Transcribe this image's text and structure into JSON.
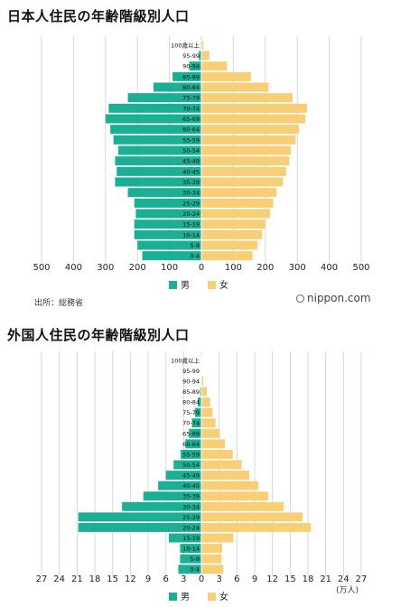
{
  "chart_data": [
    {
      "type": "bar",
      "title": "日本人住民の年齢階級別人口",
      "categories": [
        "100歳以上",
        "95-99",
        "90-94",
        "85-89",
        "80-84",
        "75-79",
        "70-74",
        "65-69",
        "60-64",
        "55-59",
        "50-54",
        "45-49",
        "40-45",
        "35-39",
        "30-34",
        "25-29",
        "20-24",
        "15-19",
        "10-14",
        "5-9",
        "0-4"
      ],
      "series": [
        {
          "name": "男",
          "values": [
            2,
            8,
            38,
            90,
            150,
            230,
            290,
            300,
            285,
            275,
            260,
            270,
            265,
            270,
            230,
            210,
            205,
            210,
            210,
            200,
            185
          ]
        },
        {
          "name": "女",
          "values": [
            6,
            25,
            80,
            155,
            210,
            285,
            330,
            325,
            305,
            295,
            280,
            275,
            265,
            255,
            235,
            225,
            215,
            200,
            190,
            175,
            160
          ]
        }
      ],
      "ticks": [
        "500",
        "400",
        "300",
        "200",
        "100",
        "0",
        "100",
        "200",
        "300",
        "400",
        "500"
      ],
      "source": "出所：総務省",
      "unit": "",
      "xlim": [
        -500,
        500
      ]
    },
    {
      "type": "bar",
      "title": "外国人住民の年齢階級別人口",
      "categories": [
        "100歳以上",
        "95-99",
        "90-94",
        "85-89",
        "80-84",
        "75-79",
        "70-74",
        "65-69",
        "60-64",
        "55-59",
        "50-54",
        "45-49",
        "40-45",
        "35-39",
        "30-34",
        "25-29",
        "20-24",
        "15-19",
        "10-14",
        "5-9",
        "0-4"
      ],
      "series": [
        {
          "name": "男",
          "values": [
            0,
            0,
            0,
            0.2,
            0.6,
            1.1,
            1.6,
            2.1,
            2.7,
            3.5,
            4.7,
            6.0,
            7.3,
            9.8,
            13.4,
            20.8,
            20.8,
            5.5,
            3.6,
            3.6,
            3.9
          ]
        },
        {
          "name": "女",
          "values": [
            0,
            0,
            0.3,
            0.9,
            1.5,
            1.9,
            2.4,
            3.1,
            4.0,
            5.3,
            6.8,
            8.1,
            9.6,
            11.3,
            13.9,
            17.1,
            18.5,
            5.4,
            3.5,
            3.4,
            3.7
          ]
        }
      ],
      "ticks": [
        "27",
        "24",
        "21",
        "18",
        "15",
        "12",
        "9",
        "6",
        "3",
        "0",
        "3",
        "6",
        "9",
        "12",
        "15",
        "18",
        "21",
        "24",
        "27"
      ],
      "unit": "(万人)",
      "xlim": [
        -27,
        27
      ]
    }
  ],
  "legend": {
    "male": "男",
    "female": "女"
  },
  "logo": "nippon.com",
  "colors": {
    "male": "#1bb094",
    "female": "#f8ce76",
    "grid": "#d8d8d8"
  }
}
